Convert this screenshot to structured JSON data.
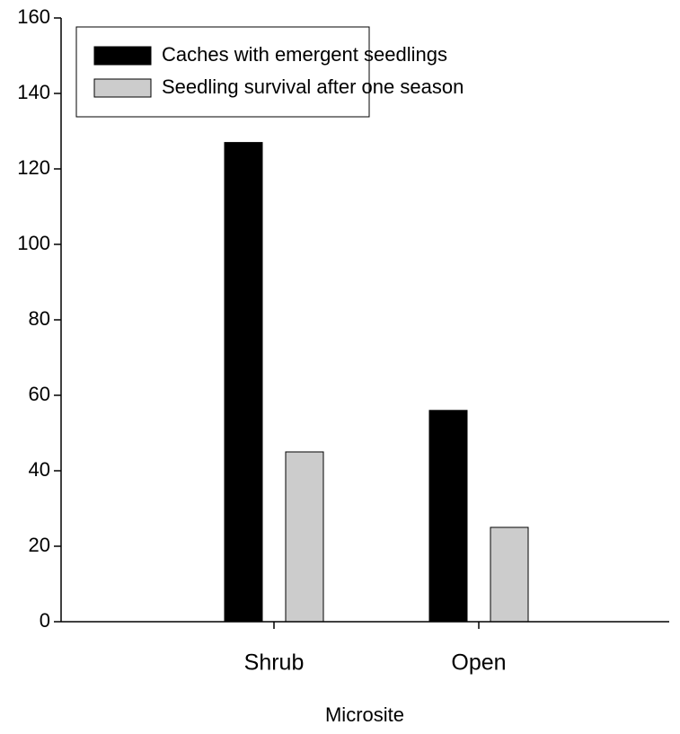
{
  "chart_data": {
    "type": "bar",
    "x_label": "Microsite",
    "categories": [
      "Shrub",
      "Open"
    ],
    "series": [
      {
        "name": "Caches with emergent seedlings",
        "color": "#000000",
        "values": [
          127,
          56
        ]
      },
      {
        "name": "Seedling survival after one season",
        "color": "#cccccc",
        "values": [
          45,
          25
        ]
      }
    ],
    "ylim": [
      0,
      160
    ],
    "yticks": [
      0,
      20,
      40,
      60,
      80,
      100,
      120,
      140,
      160
    ],
    "legend": "upper-left"
  }
}
